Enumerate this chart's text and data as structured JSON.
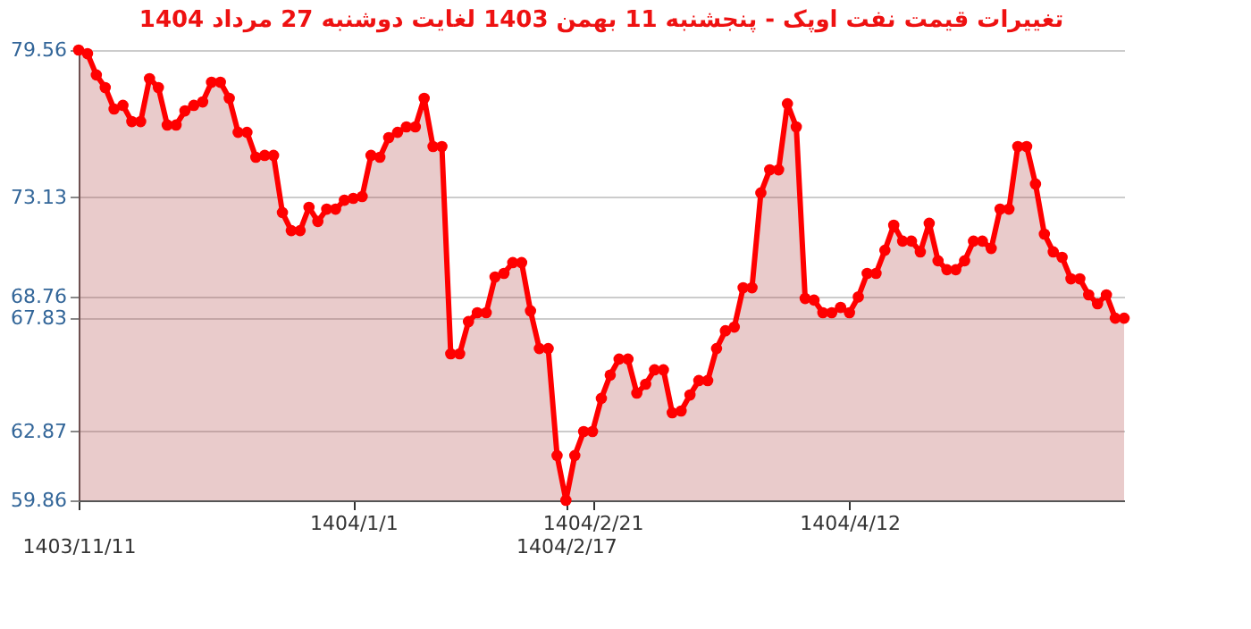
{
  "chart_data": {
    "type": "area",
    "title": "تغییرات قیمت نفت اوپک - پنجشنبه  11 بهمن 1403 لغایت  دوشنبه  27 مرداد 1404",
    "categories": [
      "1403/11/11",
      null,
      null,
      null,
      null,
      null,
      null,
      null,
      null,
      null,
      null,
      null,
      null,
      null,
      null,
      null,
      null,
      null,
      null,
      null,
      null,
      null,
      null,
      null,
      null,
      null,
      null,
      null,
      null,
      null,
      null,
      "1404/1/1",
      null,
      null,
      null,
      null,
      null,
      null,
      null,
      null,
      null,
      null,
      null,
      null,
      null,
      null,
      null,
      null,
      null,
      null,
      null,
      null,
      null,
      null,
      null,
      "1404/2/17",
      null,
      null,
      "1404/2/21",
      null,
      null,
      null,
      null,
      null,
      null,
      null,
      null,
      null,
      null,
      null,
      null,
      null,
      null,
      null,
      null,
      null,
      null,
      null,
      null,
      null,
      null,
      null,
      null,
      null,
      null,
      null,
      null,
      "1404/4/12",
      null,
      null,
      null,
      null,
      null,
      null,
      null,
      null,
      null,
      null,
      null,
      null,
      null,
      null,
      null,
      null,
      null,
      null,
      null,
      null,
      null,
      null,
      null,
      null,
      null,
      null,
      null,
      null,
      null,
      null,
      null
    ],
    "series": [
      {
        "color": "#ff0000",
        "values": [
          79.56,
          79.4,
          78.47,
          77.92,
          76.98,
          77.14,
          76.43,
          76.43,
          78.31,
          77.92,
          76.28,
          76.28,
          76.9,
          77.14,
          77.29,
          78.15,
          78.15,
          77.45,
          75.96,
          75.96,
          74.87,
          74.95,
          74.95,
          72.45,
          71.66,
          71.66,
          72.68,
          72.06,
          72.6,
          72.6,
          72.99,
          73.07,
          73.15,
          74.95,
          74.87,
          75.73,
          75.96,
          76.2,
          76.2,
          77.45,
          75.34,
          75.34,
          66.27,
          66.27,
          67.68,
          68.07,
          68.07,
          69.63,
          69.79,
          70.26,
          70.26,
          68.15,
          66.5,
          66.5,
          61.82,
          59.86,
          61.82,
          62.87,
          62.87,
          64.32,
          65.34,
          66.04,
          66.04,
          64.55,
          64.94,
          65.57,
          65.57,
          63.69,
          63.77,
          64.47,
          65.1,
          65.1,
          66.5,
          67.28,
          67.44,
          69.16,
          69.16,
          73.31,
          74.32,
          74.32,
          77.21,
          76.2,
          68.69,
          68.62,
          68.07,
          68.07,
          68.3,
          68.07,
          68.76,
          69.79,
          69.79,
          70.8,
          71.9,
          71.2,
          71.2,
          70.73,
          71.98,
          70.34,
          69.95,
          69.95,
          70.34,
          71.2,
          71.2,
          70.88,
          72.6,
          72.6,
          75.34,
          75.34,
          73.7,
          71.51,
          70.73,
          70.49,
          69.55,
          69.55,
          68.85,
          68.46,
          68.85,
          67.83,
          67.83
        ]
      }
    ],
    "ylim": [
      59.86,
      79.56
    ],
    "yticks": [
      59.86,
      62.87,
      67.83,
      68.76,
      73.13,
      79.56
    ],
    "grid": "y",
    "marker": "circle",
    "line_style": "solid"
  }
}
